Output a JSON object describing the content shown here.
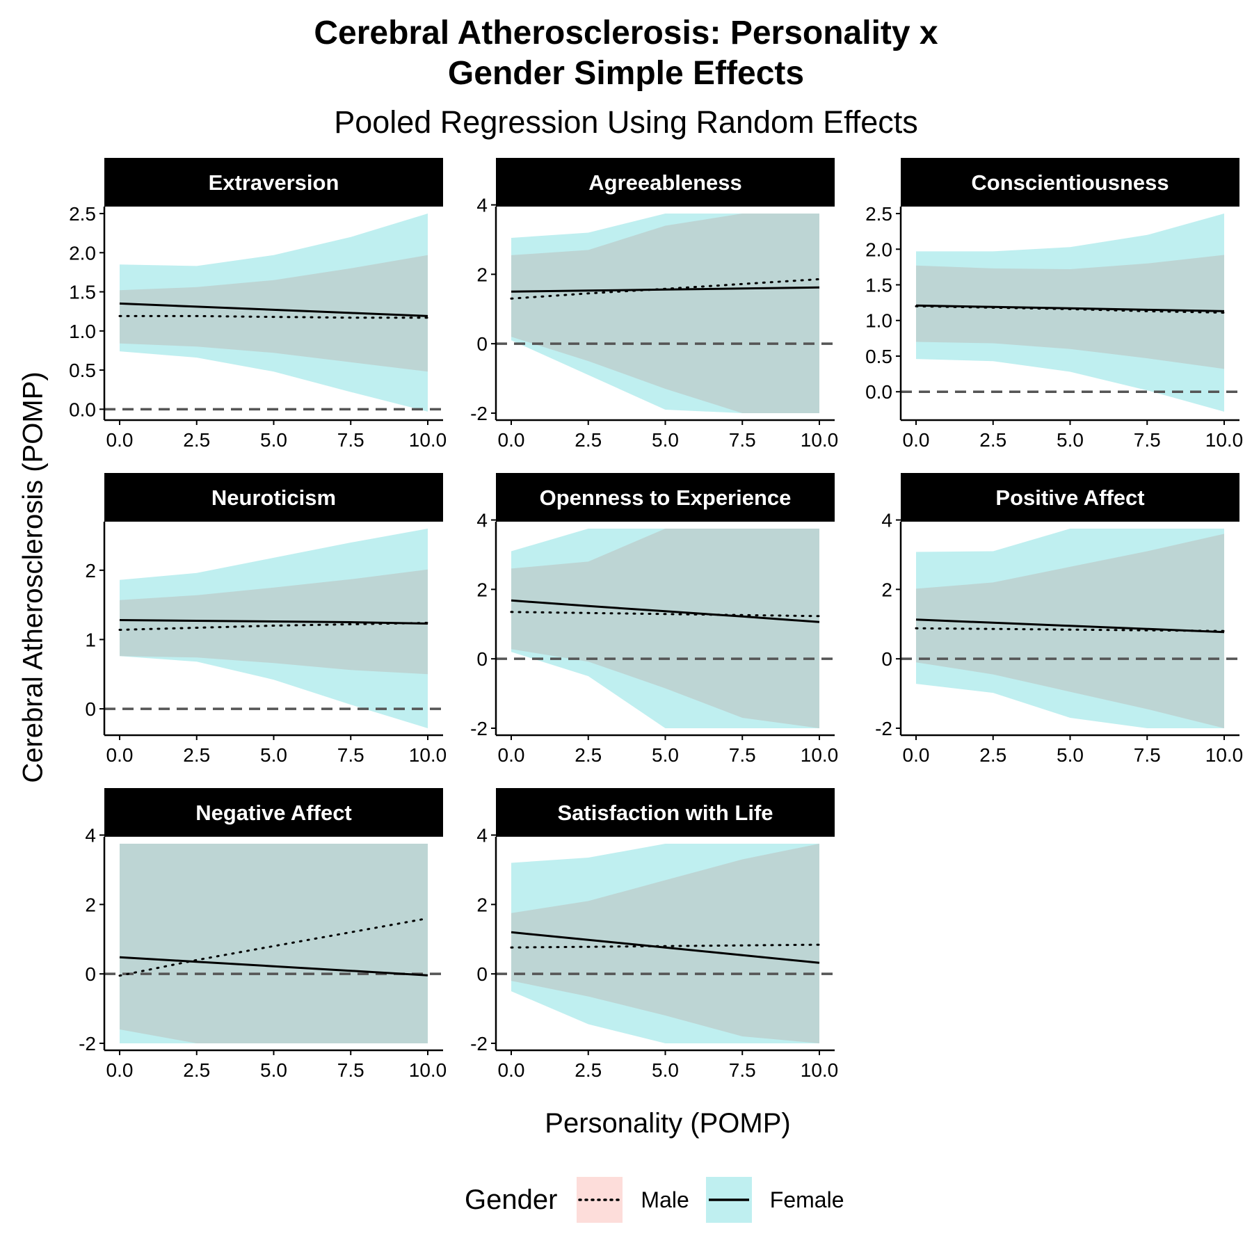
{
  "title_line1": "Cerebral Atherosclerosis: Personality x",
  "title_line2": "Gender Simple Effects",
  "subtitle": "Pooled Regression Using Random Effects",
  "ylabel": "Cerebral Atherosclerosis (POMP)",
  "xlabel": "Personality (POMP)",
  "legend": {
    "title": "Gender",
    "items": [
      {
        "label": "Male",
        "fill": "#F8766D",
        "line": "dotted"
      },
      {
        "label": "Female",
        "fill": "#00BFC4",
        "line": "solid"
      }
    ]
  },
  "colors": {
    "male_fill": "#F8766D",
    "female_fill": "#00BFC4",
    "strip_bg": "#000000",
    "strip_text": "#ffffff",
    "reference_line": "#555555"
  },
  "chart_data": [
    {
      "type": "line",
      "panel": "Extraversion",
      "xlim": [
        0,
        10
      ],
      "ylim": [
        -0.05,
        2.5
      ],
      "x_ticks": [
        "0.0",
        "2.5",
        "5.0",
        "7.5",
        "10.0"
      ],
      "y_ticks": [
        0,
        0.5,
        1,
        1.5,
        2,
        2.5
      ],
      "y_tick_labels": [
        "0.0",
        "0.5",
        "1.0",
        "1.5",
        "2.0",
        "2.5"
      ],
      "reference_y": 0,
      "x": [
        0,
        2.5,
        5,
        7.5,
        10
      ],
      "series": [
        {
          "name": "Male",
          "values": [
            1.19,
            1.19,
            1.18,
            1.17,
            1.17
          ],
          "lower": [
            0.84,
            0.8,
            0.72,
            0.6,
            0.48
          ],
          "upper": [
            1.52,
            1.56,
            1.65,
            1.8,
            1.97
          ]
        },
        {
          "name": "Female",
          "values": [
            1.35,
            1.31,
            1.27,
            1.23,
            1.19
          ],
          "lower": [
            0.74,
            0.66,
            0.48,
            0.22,
            -0.03
          ],
          "upper": [
            1.85,
            1.83,
            1.97,
            2.2,
            2.5
          ]
        }
      ]
    },
    {
      "type": "line",
      "panel": "Agreeableness",
      "xlim": [
        0,
        10
      ],
      "ylim": [
        -2,
        3.75
      ],
      "x_ticks": [
        "0.0",
        "2.5",
        "5.0",
        "7.5",
        "10.0"
      ],
      "y_ticks": [
        -2,
        0,
        2,
        4
      ],
      "y_tick_labels": [
        "-2",
        "0",
        "2",
        "4"
      ],
      "reference_y": 0,
      "x": [
        0,
        2.5,
        5,
        7.5,
        10
      ],
      "series": [
        {
          "name": "Male",
          "values": [
            1.3,
            1.45,
            1.58,
            1.72,
            1.86
          ],
          "lower": [
            0.2,
            -0.5,
            -1.3,
            -2,
            -2
          ],
          "upper": [
            2.55,
            2.7,
            3.4,
            3.75,
            3.75
          ]
        },
        {
          "name": "Female",
          "values": [
            1.5,
            1.53,
            1.56,
            1.59,
            1.62
          ],
          "lower": [
            0.1,
            -0.9,
            -1.9,
            -2,
            -2
          ],
          "upper": [
            3.05,
            3.2,
            3.75,
            3.75,
            3.75
          ]
        }
      ]
    },
    {
      "type": "line",
      "panel": "Conscientiousness",
      "xlim": [
        0,
        10
      ],
      "ylim": [
        -0.3,
        2.5
      ],
      "x_ticks": [
        "0.0",
        "2.5",
        "5.0",
        "7.5",
        "10.0"
      ],
      "y_ticks": [
        0,
        0.5,
        1,
        1.5,
        2,
        2.5
      ],
      "y_tick_labels": [
        "0.0",
        "0.5",
        "1.0",
        "1.5",
        "2.0",
        "2.5"
      ],
      "reference_y": 0,
      "x": [
        0,
        2.5,
        5,
        7.5,
        10
      ],
      "series": [
        {
          "name": "Male",
          "values": [
            1.2,
            1.18,
            1.16,
            1.13,
            1.11
          ],
          "lower": [
            0.7,
            0.68,
            0.6,
            0.47,
            0.32
          ],
          "upper": [
            1.77,
            1.73,
            1.72,
            1.8,
            1.92
          ]
        },
        {
          "name": "Female",
          "values": [
            1.21,
            1.19,
            1.17,
            1.15,
            1.13
          ],
          "lower": [
            0.46,
            0.43,
            0.28,
            0.02,
            -0.28
          ],
          "upper": [
            1.97,
            1.97,
            2.03,
            2.2,
            2.5
          ]
        }
      ]
    },
    {
      "type": "line",
      "panel": "Neuroticism",
      "xlim": [
        0,
        10
      ],
      "ylim": [
        -0.28,
        2.6
      ],
      "x_ticks": [
        "0.0",
        "2.5",
        "5.0",
        "7.5",
        "10.0"
      ],
      "y_ticks": [
        0,
        1,
        2
      ],
      "y_tick_labels": [
        "0",
        "1",
        "2"
      ],
      "reference_y": 0,
      "x": [
        0,
        2.5,
        5,
        7.5,
        10
      ],
      "series": [
        {
          "name": "Male",
          "values": [
            1.14,
            1.17,
            1.2,
            1.22,
            1.24
          ],
          "lower": [
            0.76,
            0.74,
            0.66,
            0.56,
            0.5
          ],
          "upper": [
            1.57,
            1.64,
            1.75,
            1.87,
            2.01
          ]
        },
        {
          "name": "Female",
          "values": [
            1.28,
            1.27,
            1.26,
            1.25,
            1.23
          ],
          "lower": [
            0.76,
            0.68,
            0.42,
            0.06,
            -0.28
          ],
          "upper": [
            1.86,
            1.96,
            2.18,
            2.4,
            2.6
          ]
        }
      ]
    },
    {
      "type": "line",
      "panel": "Openness to Experience",
      "xlim": [
        0,
        10
      ],
      "ylim": [
        -2,
        3.75
      ],
      "x_ticks": [
        "0.0",
        "2.5",
        "5.0",
        "7.5",
        "10.0"
      ],
      "y_ticks": [
        -2,
        0,
        2,
        4
      ],
      "y_tick_labels": [
        "-2",
        "0",
        "2",
        "4"
      ],
      "reference_y": 0,
      "x": [
        0,
        2.5,
        5,
        7.5,
        10
      ],
      "series": [
        {
          "name": "Male",
          "values": [
            1.35,
            1.32,
            1.29,
            1.26,
            1.23
          ],
          "lower": [
            0.28,
            -0.08,
            -0.85,
            -1.7,
            -2
          ],
          "upper": [
            2.6,
            2.8,
            3.75,
            3.75,
            3.75
          ]
        },
        {
          "name": "Female",
          "values": [
            1.68,
            1.52,
            1.37,
            1.22,
            1.06
          ],
          "lower": [
            0.2,
            -0.5,
            -2,
            -2,
            -2
          ],
          "upper": [
            3.1,
            3.75,
            3.75,
            3.75,
            3.75
          ]
        }
      ]
    },
    {
      "type": "line",
      "panel": "Positive Affect",
      "xlim": [
        0,
        10
      ],
      "ylim": [
        -2,
        3.75
      ],
      "x_ticks": [
        "0.0",
        "2.5",
        "5.0",
        "7.5",
        "10.0"
      ],
      "y_ticks": [
        -2,
        0,
        2,
        4
      ],
      "y_tick_labels": [
        "-2",
        "0",
        "2",
        "4"
      ],
      "reference_y": 0,
      "x": [
        0,
        2.5,
        5,
        7.5,
        10
      ],
      "series": [
        {
          "name": "Male",
          "values": [
            0.88,
            0.86,
            0.84,
            0.82,
            0.8
          ],
          "lower": [
            -0.1,
            -0.45,
            -0.95,
            -1.45,
            -2
          ],
          "upper": [
            2.02,
            2.2,
            2.65,
            3.1,
            3.6
          ]
        },
        {
          "name": "Female",
          "values": [
            1.13,
            1.04,
            0.95,
            0.86,
            0.77
          ],
          "lower": [
            -0.72,
            -0.98,
            -1.7,
            -2,
            -2
          ],
          "upper": [
            3.08,
            3.1,
            3.75,
            3.75,
            3.75
          ]
        }
      ]
    },
    {
      "type": "line",
      "panel": "Negative Affect",
      "xlim": [
        0,
        10
      ],
      "ylim": [
        -2,
        3.75
      ],
      "x_ticks": [
        "0.0",
        "2.5",
        "5.0",
        "7.5",
        "10.0"
      ],
      "y_ticks": [
        -2,
        0,
        2,
        4
      ],
      "y_tick_labels": [
        "-2",
        "0",
        "2",
        "4"
      ],
      "reference_y": 0,
      "x": [
        0,
        2.5,
        5,
        7.5,
        10
      ],
      "series": [
        {
          "name": "Male",
          "values": [
            -0.05,
            0.4,
            0.8,
            1.2,
            1.6
          ],
          "lower": [
            -1.6,
            -2,
            -2,
            -2,
            -2
          ],
          "upper": [
            3.75,
            3.75,
            3.75,
            3.75,
            3.75
          ]
        },
        {
          "name": "Female",
          "values": [
            0.48,
            0.35,
            0.22,
            0.09,
            -0.04
          ],
          "lower": [
            -2,
            -2,
            -2,
            -2,
            -2
          ],
          "upper": [
            3.75,
            3.75,
            3.75,
            3.75,
            3.75
          ]
        }
      ]
    },
    {
      "type": "line",
      "panel": "Satisfaction with Life",
      "xlim": [
        0,
        10
      ],
      "ylim": [
        -2,
        3.75
      ],
      "x_ticks": [
        "0.0",
        "2.5",
        "5.0",
        "7.5",
        "10.0"
      ],
      "y_ticks": [
        -2,
        0,
        2,
        4
      ],
      "y_tick_labels": [
        "-2",
        "0",
        "2",
        "4"
      ],
      "reference_y": 0,
      "x": [
        0,
        2.5,
        5,
        7.5,
        10
      ],
      "series": [
        {
          "name": "Male",
          "values": [
            0.76,
            0.78,
            0.8,
            0.82,
            0.84
          ],
          "lower": [
            -0.2,
            -0.65,
            -1.2,
            -1.8,
            -2
          ],
          "upper": [
            1.75,
            2.1,
            2.7,
            3.3,
            3.75
          ]
        },
        {
          "name": "Female",
          "values": [
            1.2,
            0.98,
            0.76,
            0.54,
            0.32
          ],
          "lower": [
            -0.5,
            -1.45,
            -2,
            -2,
            -2
          ],
          "upper": [
            3.2,
            3.35,
            3.75,
            3.75,
            3.75
          ]
        }
      ]
    }
  ]
}
